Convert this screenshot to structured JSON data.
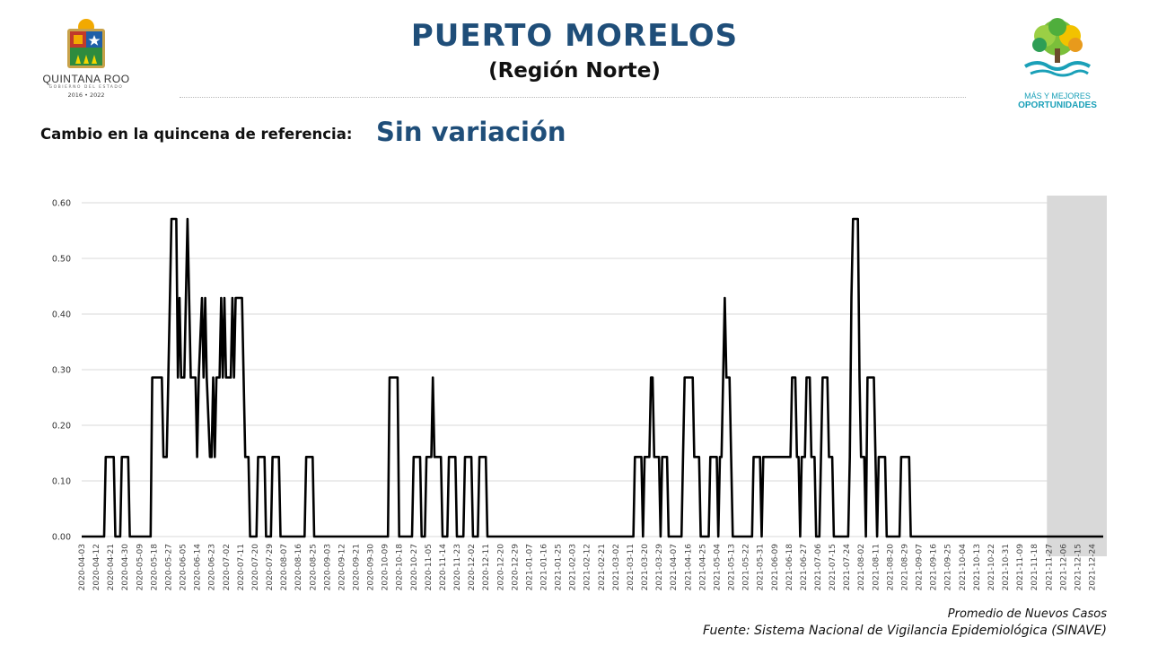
{
  "header": {
    "title": "PUERTO MORELOS",
    "subtitle": "(Región Norte)",
    "left_logo": {
      "name": "QUINTANA ROO",
      "sub": "GOBIERNO DEL ESTADO",
      "years": "2016 • 2022"
    },
    "right_logo": {
      "line1": "MÁS Y MEJORES",
      "line2": "OPORTUNIDADES"
    }
  },
  "summary": {
    "label": "Cambio en la quincena de referencia:",
    "value": "Sin variación"
  },
  "footer": {
    "line1": "Promedio de Nuevos Casos",
    "line2": "Fuente: Sistema Nacional de Vigilancia Epidemiológica (SINAVE)"
  },
  "colors": {
    "title": "#1f4e79",
    "line": "#000000",
    "shade": "#d9d9d9",
    "grid": "#d9d9d9"
  },
  "chart_data": {
    "type": "line",
    "title": "",
    "xlabel": "",
    "ylabel": "",
    "ylim": [
      0,
      0.6
    ],
    "y_ticks": [
      "0.00",
      "0.10",
      "0.20",
      "0.30",
      "0.40",
      "0.50",
      "0.60"
    ],
    "grid": "horizontal",
    "x_start": "2020-04-03",
    "x_end": "2021-12-31",
    "x_tick_labels": [
      "2020-04-03",
      "2020-04-12",
      "2020-04-21",
      "2020-04-30",
      "2020-05-09",
      "2020-05-18",
      "2020-05-27",
      "2020-06-05",
      "2020-06-14",
      "2020-06-23",
      "2020-07-02",
      "2020-07-11",
      "2020-07-20",
      "2020-07-29",
      "2020-08-07",
      "2020-08-16",
      "2020-08-25",
      "2020-09-03",
      "2020-09-12",
      "2020-09-21",
      "2020-09-30",
      "2020-10-09",
      "2020-10-18",
      "2020-10-27",
      "2020-11-05",
      "2020-11-14",
      "2020-11-23",
      "2020-12-02",
      "2020-12-11",
      "2020-12-20",
      "2020-12-29",
      "2021-01-07",
      "2021-01-16",
      "2021-01-25",
      "2021-02-03",
      "2021-02-12",
      "2021-02-21",
      "2021-03-02",
      "2021-03-11",
      "2021-03-20",
      "2021-03-29",
      "2021-04-07",
      "2021-04-16",
      "2021-04-25",
      "2021-05-04",
      "2021-05-13",
      "2021-05-22",
      "2021-05-31",
      "2021-06-09",
      "2021-06-18",
      "2021-06-27",
      "2021-07-06",
      "2021-07-15",
      "2021-07-24",
      "2021-08-02",
      "2021-08-11",
      "2021-08-20",
      "2021-08-29",
      "2021-09-07",
      "2021-09-16",
      "2021-09-25",
      "2021-10-04",
      "2021-10-13",
      "2021-10-22",
      "2021-10-31",
      "2021-11-09",
      "2021-11-18",
      "2021-11-27",
      "2021-12-06",
      "2021-12-15",
      "2021-12-24"
    ],
    "highlight_range": [
      "2021-11-27",
      "2021-12-31"
    ],
    "series": [
      {
        "name": "",
        "points": [
          [
            "2020-04-03",
            0
          ],
          [
            "2020-04-17",
            0
          ],
          [
            "2020-04-18",
            0.143
          ],
          [
            "2020-04-23",
            0.143
          ],
          [
            "2020-04-24",
            0
          ],
          [
            "2020-04-27",
            0
          ],
          [
            "2020-04-28",
            0.143
          ],
          [
            "2020-05-02",
            0.143
          ],
          [
            "2020-05-03",
            0
          ],
          [
            "2020-05-16",
            0
          ],
          [
            "2020-05-17",
            0.286
          ],
          [
            "2020-05-23",
            0.286
          ],
          [
            "2020-05-24",
            0.143
          ],
          [
            "2020-05-26",
            0.143
          ],
          [
            "2020-05-28",
            0.429
          ],
          [
            "2020-05-29",
            0.571
          ],
          [
            "2020-06-01",
            0.571
          ],
          [
            "2020-06-02",
            0.286
          ],
          [
            "2020-06-03",
            0.429
          ],
          [
            "2020-06-04",
            0.286
          ],
          [
            "2020-06-06",
            0.286
          ],
          [
            "2020-06-07",
            0.429
          ],
          [
            "2020-06-08",
            0.571
          ],
          [
            "2020-06-09",
            0.429
          ],
          [
            "2020-06-10",
            0.286
          ],
          [
            "2020-06-13",
            0.286
          ],
          [
            "2020-06-14",
            0.143
          ],
          [
            "2020-06-15",
            0.286
          ],
          [
            "2020-06-17",
            0.429
          ],
          [
            "2020-06-18",
            0.286
          ],
          [
            "2020-06-19",
            0.429
          ],
          [
            "2020-06-20",
            0.286
          ],
          [
            "2020-06-22",
            0.143
          ],
          [
            "2020-06-23",
            0.143
          ],
          [
            "2020-06-24",
            0.286
          ],
          [
            "2020-06-25",
            0.143
          ],
          [
            "2020-06-26",
            0.286
          ],
          [
            "2020-06-28",
            0.286
          ],
          [
            "2020-06-29",
            0.429
          ],
          [
            "2020-06-30",
            0.286
          ],
          [
            "2020-07-01",
            0.429
          ],
          [
            "2020-07-02",
            0.286
          ],
          [
            "2020-07-05",
            0.286
          ],
          [
            "2020-07-06",
            0.429
          ],
          [
            "2020-07-07",
            0.286
          ],
          [
            "2020-07-08",
            0.429
          ],
          [
            "2020-07-12",
            0.429
          ],
          [
            "2020-07-13",
            0.286
          ],
          [
            "2020-07-14",
            0.143
          ],
          [
            "2020-07-16",
            0.143
          ],
          [
            "2020-07-17",
            0
          ],
          [
            "2020-07-21",
            0
          ],
          [
            "2020-07-22",
            0.143
          ],
          [
            "2020-07-26",
            0.143
          ],
          [
            "2020-07-27",
            0
          ],
          [
            "2020-07-30",
            0
          ],
          [
            "2020-07-31",
            0.143
          ],
          [
            "2020-08-04",
            0.143
          ],
          [
            "2020-08-05",
            0
          ],
          [
            "2020-08-20",
            0
          ],
          [
            "2020-08-21",
            0.143
          ],
          [
            "2020-08-25",
            0.143
          ],
          [
            "2020-08-26",
            0
          ],
          [
            "2020-10-11",
            0
          ],
          [
            "2020-10-12",
            0.286
          ],
          [
            "2020-10-17",
            0.286
          ],
          [
            "2020-10-18",
            0
          ],
          [
            "2020-10-26",
            0
          ],
          [
            "2020-10-27",
            0.143
          ],
          [
            "2020-10-31",
            0.143
          ],
          [
            "2020-11-01",
            0
          ],
          [
            "2020-11-03",
            0
          ],
          [
            "2020-11-04",
            0.143
          ],
          [
            "2020-11-07",
            0.143
          ],
          [
            "2020-11-08",
            0.286
          ],
          [
            "2020-11-09",
            0.143
          ],
          [
            "2020-11-13",
            0.143
          ],
          [
            "2020-11-14",
            0
          ],
          [
            "2020-11-17",
            0
          ],
          [
            "2020-11-18",
            0.143
          ],
          [
            "2020-11-22",
            0.143
          ],
          [
            "2020-11-23",
            0
          ],
          [
            "2020-11-27",
            0
          ],
          [
            "2020-11-28",
            0.143
          ],
          [
            "2020-12-02",
            0.143
          ],
          [
            "2020-12-03",
            0
          ],
          [
            "2020-12-06",
            0
          ],
          [
            "2020-12-07",
            0.143
          ],
          [
            "2020-12-11",
            0.143
          ],
          [
            "2020-12-12",
            0
          ],
          [
            "2021-03-13",
            0
          ],
          [
            "2021-03-14",
            0.143
          ],
          [
            "2021-03-18",
            0.143
          ],
          [
            "2021-03-19",
            0
          ],
          [
            "2021-03-20",
            0.143
          ],
          [
            "2021-03-23",
            0.143
          ],
          [
            "2021-03-24",
            0.286
          ],
          [
            "2021-03-25",
            0.286
          ],
          [
            "2021-03-26",
            0.143
          ],
          [
            "2021-03-29",
            0.143
          ],
          [
            "2021-03-30",
            0
          ],
          [
            "2021-03-31",
            0.143
          ],
          [
            "2021-04-03",
            0.143
          ],
          [
            "2021-04-04",
            0
          ],
          [
            "2021-04-12",
            0
          ],
          [
            "2021-04-13",
            0.143
          ],
          [
            "2021-04-14",
            0.286
          ],
          [
            "2021-04-19",
            0.286
          ],
          [
            "2021-04-20",
            0.143
          ],
          [
            "2021-04-23",
            0.143
          ],
          [
            "2021-04-24",
            0
          ],
          [
            "2021-04-29",
            0
          ],
          [
            "2021-04-30",
            0.143
          ],
          [
            "2021-05-04",
            0.143
          ],
          [
            "2021-05-05",
            0
          ],
          [
            "2021-05-06",
            0.143
          ],
          [
            "2021-05-07",
            0.143
          ],
          [
            "2021-05-08",
            0.286
          ],
          [
            "2021-05-09",
            0.429
          ],
          [
            "2021-05-10",
            0.286
          ],
          [
            "2021-05-12",
            0.286
          ],
          [
            "2021-05-13",
            0.143
          ],
          [
            "2021-05-14",
            0
          ],
          [
            "2021-05-26",
            0
          ],
          [
            "2021-05-27",
            0.143
          ],
          [
            "2021-05-31",
            0.143
          ],
          [
            "2021-06-01",
            0
          ],
          [
            "2021-06-02",
            0.143
          ],
          [
            "2021-06-19",
            0.143
          ],
          [
            "2021-06-20",
            0.286
          ],
          [
            "2021-06-22",
            0.286
          ],
          [
            "2021-06-23",
            0.143
          ],
          [
            "2021-06-24",
            0.143
          ],
          [
            "2021-06-25",
            0
          ],
          [
            "2021-06-26",
            0.143
          ],
          [
            "2021-06-28",
            0.143
          ],
          [
            "2021-06-29",
            0.286
          ],
          [
            "2021-07-01",
            0.286
          ],
          [
            "2021-07-02",
            0.143
          ],
          [
            "2021-07-04",
            0.143
          ],
          [
            "2021-07-05",
            0
          ],
          [
            "2021-07-07",
            0
          ],
          [
            "2021-07-08",
            0.143
          ],
          [
            "2021-07-09",
            0.286
          ],
          [
            "2021-07-12",
            0.286
          ],
          [
            "2021-07-13",
            0.143
          ],
          [
            "2021-07-15",
            0.143
          ],
          [
            "2021-07-16",
            0
          ],
          [
            "2021-07-25",
            0
          ],
          [
            "2021-07-26",
            0.143
          ],
          [
            "2021-07-27",
            0.429
          ],
          [
            "2021-07-28",
            0.571
          ],
          [
            "2021-07-31",
            0.571
          ],
          [
            "2021-08-01",
            0.286
          ],
          [
            "2021-08-02",
            0.143
          ],
          [
            "2021-08-04",
            0.143
          ],
          [
            "2021-08-05",
            0
          ],
          [
            "2021-08-06",
            0.286
          ],
          [
            "2021-08-10",
            0.286
          ],
          [
            "2021-08-11",
            0.143
          ],
          [
            "2021-08-12",
            0
          ],
          [
            "2021-08-13",
            0.143
          ],
          [
            "2021-08-17",
            0.143
          ],
          [
            "2021-08-18",
            0
          ],
          [
            "2021-08-26",
            0
          ],
          [
            "2021-08-27",
            0.143
          ],
          [
            "2021-09-01",
            0.143
          ],
          [
            "2021-09-02",
            0
          ],
          [
            "2021-12-31",
            0
          ]
        ]
      }
    ]
  }
}
